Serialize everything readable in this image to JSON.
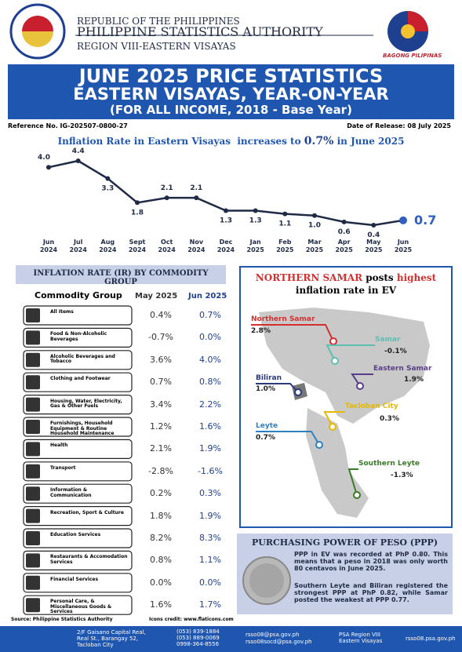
{
  "header": {
    "line1": "REPUBLIC OF THE PHILIPPINES",
    "line2": "PHILIPPINE STATISTICS AUTHORITY",
    "line3": "REGION VIII-EASTERN VISAYAS",
    "logo_text": "BAGONG PILIPINAS"
  },
  "banner": {
    "title": "JUNE 2025 PRICE STATISTICS",
    "subtitle": "EASTERN VISAYAS, YEAR-ON-YEAR",
    "note": "(FOR ALL INCOME, 2018 - Base Year)"
  },
  "reference": "Reference No. IG-202507-0800-27",
  "release_date": "Date of Release: 08 July 2025",
  "chart_data": {
    "type": "line",
    "title": "Inflation Rate in Eastern Visayas  increases to",
    "title_highlight": "0.7%",
    "title_suffix": "in June 2025",
    "categories": [
      "Jun 2024",
      "Jul 2024",
      "Aug 2024",
      "Sept 2024",
      "Oct 2024",
      "Nov 2024",
      "Dec 2024",
      "Jan 2025",
      "Feb 2025",
      "Mar 2025",
      "Apr 2025",
      "May 2025",
      "Jun 2025"
    ],
    "values": [
      4.0,
      4.4,
      3.3,
      1.8,
      2.1,
      2.1,
      1.3,
      1.3,
      1.1,
      1.0,
      0.6,
      0.4,
      0.7
    ],
    "value_labels": [
      "4.0",
      "4.4",
      "3.3",
      "1.8",
      "2.1",
      "2.1",
      "1.3",
      "1.3",
      "1.1",
      "1.0",
      "0.6",
      "0.4",
      "0.7"
    ],
    "color": "#1f2a44",
    "last_color": "#2f5fbf"
  },
  "table": {
    "title": "INFLATION RATE (IR) BY COMMODITY GROUP",
    "columns": [
      "Commodity Group",
      "May 2025",
      "Jun 2025"
    ],
    "rows": [
      [
        "All Items",
        "0.4%",
        "0.7%"
      ],
      [
        "Food & Non-Alcoholic Beverages",
        "-0.7%",
        "0.0%"
      ],
      [
        "Alcoholic Beverages and Tobacco",
        "3.6%",
        "4.0%"
      ],
      [
        "Clothing and Footwear",
        "0.7%",
        "0.8%"
      ],
      [
        "Housing, Water, Electricity, Gas & Other Fuels",
        "3.4%",
        "2.2%"
      ],
      [
        "Furnishings, Household Equipment & Routine Household Maintenance",
        "1.2%",
        "1.6%"
      ],
      [
        "Health",
        "2.1%",
        "1.9%"
      ],
      [
        "Transport",
        "-2.8%",
        "-1.6%"
      ],
      [
        "Information & Communication",
        "0.2%",
        "0.3%"
      ],
      [
        "Recreation, Sport & Culture",
        "1.8%",
        "1.9%"
      ],
      [
        "Education Services",
        "8.2%",
        "8.3%"
      ],
      [
        "Restaurants & Accomodation Services",
        "0.8%",
        "1.1%"
      ],
      [
        "Financial Services",
        "0.0%",
        "0.0%"
      ],
      [
        "Personal Care, & Miscellaneous Goods & Services",
        "1.6%",
        "1.7%"
      ]
    ]
  },
  "map": {
    "title_highlight": "NORTHERN SAMAR",
    "title_mid": "posts",
    "title_highlight2": "highest",
    "title_suffix": "inflation rate in EV",
    "regions": [
      {
        "name": "Northern Samar",
        "value": "2.8%",
        "color": "#d32f2f"
      },
      {
        "name": "Samar",
        "value": "-0.1%",
        "color": "#5fbfb0"
      },
      {
        "name": "Eastern Samar",
        "value": "1.9%",
        "color": "#5a3d8a"
      },
      {
        "name": "Biliran",
        "value": "1.0%",
        "color": "#2a3a7a"
      },
      {
        "name": "Tacloban City",
        "value": "0.3%",
        "color": "#e6b800"
      },
      {
        "name": "Leyte",
        "value": "0.7%",
        "color": "#2f80c0"
      },
      {
        "name": "Southern Leyte",
        "value": "-1.3%",
        "color": "#3a7a2a"
      }
    ]
  },
  "ppp": {
    "title": "PURCHASING POWER OF PESO (PPP)",
    "paragraphs": [
      "PPP in EV was recorded at PhP 0.80. This means that a peso in 2018 was only worth 80 centavos in June 2025.",
      "Southern Leyte and Biliran registered the strongest PPP at PhP 0.82, while Samar posted the weakest at PPP 0.77."
    ]
  },
  "footer": {
    "source": "Source: Philippine Statistics Authority",
    "credits": "Icons credit: www.flaticons.com",
    "address": "2/F Gaisano Capital Real, Real St., Barangay 52, Tacloban City",
    "phones": [
      "(053) 839-1884",
      "(053) 889-0069",
      "0998-364-8556"
    ],
    "emails": [
      "rsso08@psa.gov.ph",
      "rsso08socd@psa.gov.ph"
    ],
    "facebook": "PSA Region VIII Eastern Visayas",
    "website": "rsso08.psa.gov.ph"
  }
}
